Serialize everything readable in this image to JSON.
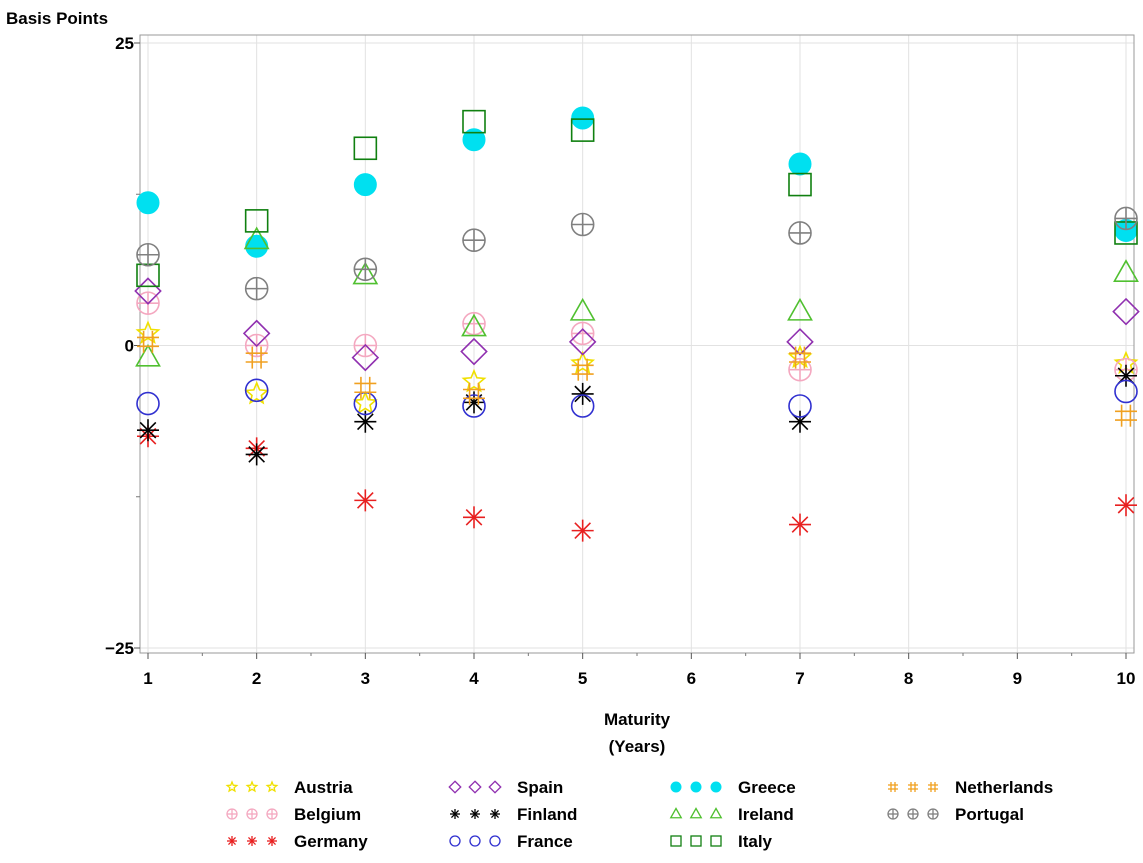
{
  "chart_data": {
    "type": "scatter",
    "title": "",
    "ylabel": "Basis Points",
    "xlabel_lines": [
      "Maturity",
      "(Years)"
    ],
    "ylim": [
      -25,
      25
    ],
    "xlim": [
      1,
      10
    ],
    "yticks": [
      {
        "value": 25,
        "label": "25"
      },
      {
        "value": 0,
        "label": "0"
      },
      {
        "value": -25,
        "label": "−25"
      }
    ],
    "xticks": [
      {
        "value": 1,
        "label": "1"
      },
      {
        "value": 2,
        "label": "2"
      },
      {
        "value": 3,
        "label": "3"
      },
      {
        "value": 4,
        "label": "4"
      },
      {
        "value": 5,
        "label": "5"
      },
      {
        "value": 6,
        "label": "6"
      },
      {
        "value": 7,
        "label": "7"
      },
      {
        "value": 8,
        "label": "8"
      },
      {
        "value": 9,
        "label": "9"
      },
      {
        "value": 10,
        "label": "10"
      }
    ],
    "grid": true,
    "legend_position": "bottom",
    "series": [
      {
        "name": "Austria",
        "marker": "star",
        "color": "#f0e000",
        "points": [
          [
            1,
            1
          ],
          [
            2,
            -4
          ],
          [
            3,
            -4.8
          ],
          [
            4,
            -3
          ],
          [
            5,
            -1.5
          ],
          [
            7,
            -1
          ],
          [
            10,
            -1.5
          ]
        ]
      },
      {
        "name": "Belgium",
        "marker": "circle-plus",
        "color": "#f4a8c0",
        "points": [
          [
            1,
            3.5
          ],
          [
            2,
            0
          ],
          [
            3,
            0
          ],
          [
            4,
            1.8
          ],
          [
            5,
            1
          ],
          [
            7,
            -2
          ],
          [
            10,
            -2
          ]
        ]
      },
      {
        "name": "Germany",
        "marker": "asterisk",
        "color": "#e82020",
        "points": [
          [
            1,
            -7.5
          ],
          [
            2,
            -8.5
          ],
          [
            3,
            -12.8
          ],
          [
            4,
            -14.2
          ],
          [
            5,
            -15.3
          ],
          [
            7,
            -14.8
          ],
          [
            10,
            -13.2
          ]
        ]
      },
      {
        "name": "Spain",
        "marker": "diamond",
        "color": "#9030b0",
        "points": [
          [
            1,
            4.5
          ],
          [
            2,
            1
          ],
          [
            3,
            -1
          ],
          [
            4,
            -0.5
          ],
          [
            5,
            0.3
          ],
          [
            7,
            0.3
          ],
          [
            10,
            2.8
          ]
        ]
      },
      {
        "name": "Finland",
        "marker": "asterisk",
        "color": "#000000",
        "points": [
          [
            1,
            -7
          ],
          [
            2,
            -9
          ],
          [
            3,
            -6.3
          ],
          [
            4,
            -4.7
          ],
          [
            5,
            -4
          ],
          [
            7,
            -6.3
          ],
          [
            10,
            -2.5
          ]
        ]
      },
      {
        "name": "France",
        "marker": "circle",
        "color": "#3030d0",
        "points": [
          [
            1,
            -4.8
          ],
          [
            2,
            -3.7
          ],
          [
            3,
            -4.8
          ],
          [
            4,
            -5
          ],
          [
            5,
            -5
          ],
          [
            7,
            -5
          ],
          [
            10,
            -3.8
          ]
        ]
      },
      {
        "name": "Greece",
        "marker": "filled-circle",
        "color": "#00e0f0",
        "points": [
          [
            1,
            11.8
          ],
          [
            2,
            8.2
          ],
          [
            3,
            13.3
          ],
          [
            4,
            17
          ],
          [
            5,
            18.8
          ],
          [
            7,
            15
          ],
          [
            10,
            9.5
          ]
        ]
      },
      {
        "name": "Ireland",
        "marker": "triangle",
        "color": "#50c030",
        "points": [
          [
            1,
            -1
          ],
          [
            2,
            8.7
          ],
          [
            3,
            5.8
          ],
          [
            4,
            1.5
          ],
          [
            5,
            2.8
          ],
          [
            7,
            2.8
          ],
          [
            10,
            6
          ]
        ]
      },
      {
        "name": "Italy",
        "marker": "square",
        "color": "#108010",
        "points": [
          [
            1,
            5.8
          ],
          [
            2,
            10.3
          ],
          [
            3,
            16.3
          ],
          [
            4,
            18.5
          ],
          [
            5,
            17.8
          ],
          [
            7,
            13.3
          ],
          [
            10,
            9.3
          ]
        ]
      },
      {
        "name": "Netherlands",
        "marker": "hash",
        "color": "#f0a020",
        "points": [
          [
            1,
            0.3
          ],
          [
            2,
            -1
          ],
          [
            3,
            -3.5
          ],
          [
            4,
            -4
          ],
          [
            5,
            -2
          ],
          [
            7,
            -1
          ],
          [
            10,
            -5.8
          ]
        ]
      },
      {
        "name": "Portugal",
        "marker": "circle-plus",
        "color": "#808080",
        "points": [
          [
            1,
            7.5
          ],
          [
            2,
            4.7
          ],
          [
            3,
            6.3
          ],
          [
            4,
            8.7
          ],
          [
            5,
            10
          ],
          [
            7,
            9.3
          ],
          [
            10,
            10.5
          ]
        ]
      }
    ],
    "legend": [
      {
        "name": "Austria",
        "marker": "star",
        "color": "#f0e000"
      },
      {
        "name": "Belgium",
        "marker": "circle-plus",
        "color": "#f4a8c0"
      },
      {
        "name": "Germany",
        "marker": "asterisk",
        "color": "#e82020"
      },
      {
        "name": "Spain",
        "marker": "diamond",
        "color": "#9030b0"
      },
      {
        "name": "Finland",
        "marker": "asterisk",
        "color": "#000000"
      },
      {
        "name": "France",
        "marker": "circle",
        "color": "#3030d0"
      },
      {
        "name": "Greece",
        "marker": "filled-circle",
        "color": "#00e0f0"
      },
      {
        "name": "Ireland",
        "marker": "triangle",
        "color": "#50c030"
      },
      {
        "name": "Italy",
        "marker": "square",
        "color": "#108010"
      },
      {
        "name": "Netherlands",
        "marker": "hash",
        "color": "#f0a020"
      },
      {
        "name": "Portugal",
        "marker": "circle-plus",
        "color": "#808080"
      }
    ]
  }
}
